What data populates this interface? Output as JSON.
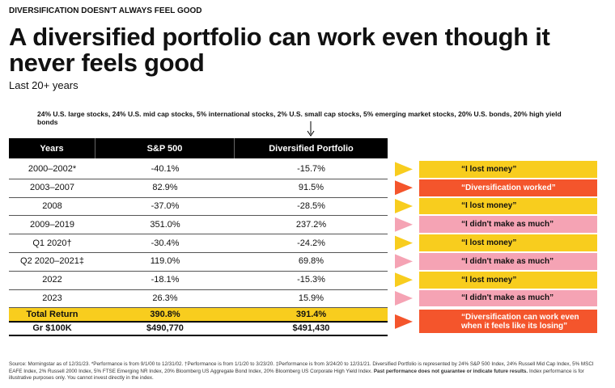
{
  "eyebrow": "DIVERSIFICATION DOESN'T ALWAYS FEEL GOOD",
  "title": "A diversified portfolio can work even though it never feels good",
  "subtitle": "Last 20+ years",
  "allocation_note": "24% U.S. large stocks, 24% U.S. mid cap stocks, 5% international stocks, 2% U.S. small cap stocks, 5% emerging market stocks, 20% U.S. bonds, 20% high yield bonds",
  "table": {
    "columns": [
      "Years",
      "S&P 500",
      "Diversified Portfolio"
    ],
    "rows": [
      [
        "2000–2002*",
        "-40.1%",
        "-15.7%"
      ],
      [
        "2003–2007",
        "82.9%",
        "91.5%"
      ],
      [
        "2008",
        "-37.0%",
        "-28.5%"
      ],
      [
        "2009–2019",
        "351.0%",
        "237.2%"
      ],
      [
        "Q1 2020†",
        "-30.4%",
        "-24.2%"
      ],
      [
        "Q2 2020–2021‡",
        "119.0%",
        "69.8%"
      ],
      [
        "2022",
        "-18.1%",
        "-15.3%"
      ],
      [
        "2023",
        "26.3%",
        "15.9%"
      ]
    ],
    "total": [
      "Total Return",
      "390.8%",
      "391.4%"
    ],
    "growth": [
      "Gr $100K",
      "$490,770",
      "$491,430"
    ]
  },
  "reactions": [
    {
      "text": "“I lost money”",
      "color": "#f8cd1e"
    },
    {
      "text": "“Diversification worked”",
      "color": "#f4552c"
    },
    {
      "text": "“I lost money”",
      "color": "#f8cd1e"
    },
    {
      "text": "“I didn't make as much”",
      "color": "#f5a3b4"
    },
    {
      "text": "“I lost money”",
      "color": "#f8cd1e"
    },
    {
      "text": "“I didn't make as much”",
      "color": "#f5a3b4"
    },
    {
      "text": "“I lost money”",
      "color": "#f8cd1e"
    },
    {
      "text": "“I didn't make as much”",
      "color": "#f5a3b4"
    },
    {
      "text": "“Diversification can work even when it feels like its losing”",
      "color": "#f4552c"
    }
  ],
  "footnote": "Source: Morningstar as of 12/31/23. *Performance is from 9/1/00 to 12/31/02. †Performance is from 1/1/20 to 3/23/20. ‡Performance is from 3/24/20 to 12/31/21. Diversified Portfolio is represented by 24% S&P 500 Index, 24% Russell Mid Cap Index, 5% MSCI EAFE Index, 2% Russell 2000 Index, 5% FTSE Emerging NR Index, 20% Bloomberg US Aggregate Bond Index, 20% Bloomberg US Corporate High Yield Index.",
  "footnote_bold": "Past performance does not guarantee or indicate future results.",
  "footnote_end": "Index performance is for illustrative purposes only. You cannot invest directly in the index."
}
